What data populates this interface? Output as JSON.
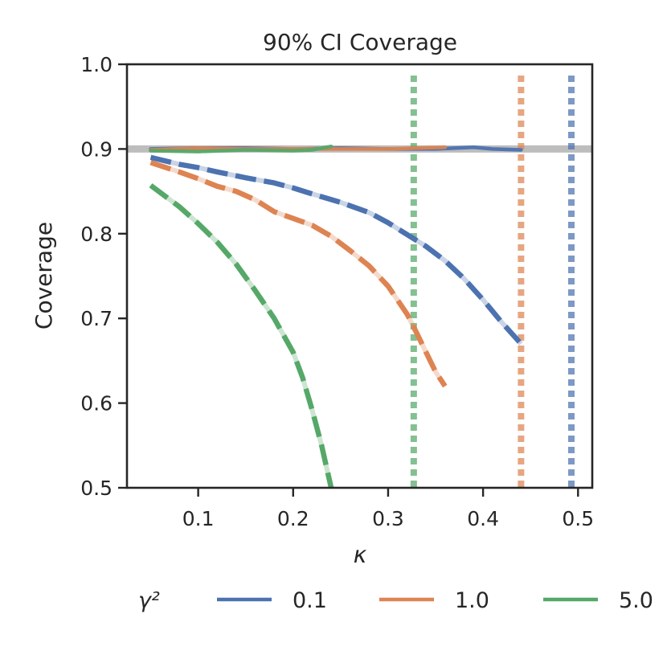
{
  "chart_data": {
    "type": "line",
    "title": "90% CI Coverage",
    "xlabel": "κ",
    "ylabel": "Coverage",
    "xlim": [
      0.025,
      0.515
    ],
    "ylim": [
      0.5,
      1.0
    ],
    "x_ticks": [
      0.1,
      0.2,
      0.3,
      0.4,
      0.5
    ],
    "x_tick_labels": [
      "0.1",
      "0.2",
      "0.3",
      "0.4",
      "0.5"
    ],
    "y_ticks": [
      0.5,
      0.6,
      0.7,
      0.8,
      0.9,
      1.0
    ],
    "y_tick_labels": [
      "0.5",
      "0.6",
      "0.7",
      "0.8",
      "0.9",
      "1.0"
    ],
    "reference_line": {
      "y": 0.9,
      "color": "#bdbdbd"
    },
    "legend": {
      "title": "γ²",
      "placement": "bottom"
    },
    "series": [
      {
        "name": "0.1",
        "color": "#4c72b0",
        "threshold_kappa": 0.493,
        "calibrated": {
          "x": [
            0.05,
            0.1,
            0.15,
            0.2,
            0.25,
            0.3,
            0.35,
            0.39,
            0.41,
            0.44
          ],
          "y": [
            0.9,
            0.901,
            0.901,
            0.9,
            0.901,
            0.9,
            0.9,
            0.902,
            0.9,
            0.899
          ]
        },
        "naive": {
          "x": [
            0.05,
            0.08,
            0.1,
            0.12,
            0.15,
            0.18,
            0.2,
            0.22,
            0.25,
            0.28,
            0.3,
            0.32,
            0.34,
            0.36,
            0.38,
            0.4,
            0.42,
            0.44
          ],
          "y": [
            0.89,
            0.882,
            0.878,
            0.873,
            0.866,
            0.86,
            0.854,
            0.847,
            0.837,
            0.825,
            0.813,
            0.799,
            0.785,
            0.768,
            0.747,
            0.722,
            0.695,
            0.67
          ]
        }
      },
      {
        "name": "1.0",
        "color": "#dd8452",
        "threshold_kappa": 0.44,
        "calibrated": {
          "x": [
            0.05,
            0.1,
            0.15,
            0.2,
            0.25,
            0.3,
            0.33,
            0.36
          ],
          "y": [
            0.899,
            0.901,
            0.9,
            0.9,
            0.9,
            0.9,
            0.901,
            0.902
          ]
        },
        "naive": {
          "x": [
            0.05,
            0.08,
            0.1,
            0.12,
            0.14,
            0.16,
            0.18,
            0.2,
            0.22,
            0.24,
            0.26,
            0.28,
            0.3,
            0.32,
            0.33,
            0.34,
            0.35,
            0.36
          ],
          "y": [
            0.884,
            0.873,
            0.865,
            0.856,
            0.85,
            0.84,
            0.826,
            0.818,
            0.81,
            0.797,
            0.78,
            0.762,
            0.738,
            0.705,
            0.683,
            0.66,
            0.637,
            0.62
          ]
        }
      },
      {
        "name": "5.0",
        "color": "#55a868",
        "threshold_kappa": 0.327,
        "calibrated": {
          "x": [
            0.05,
            0.1,
            0.15,
            0.2,
            0.22,
            0.24
          ],
          "y": [
            0.898,
            0.897,
            0.899,
            0.898,
            0.899,
            0.903
          ]
        },
        "naive": {
          "x": [
            0.05,
            0.08,
            0.1,
            0.12,
            0.14,
            0.16,
            0.18,
            0.2,
            0.21,
            0.22,
            0.23,
            0.24
          ],
          "y": [
            0.857,
            0.832,
            0.812,
            0.79,
            0.764,
            0.733,
            0.7,
            0.66,
            0.63,
            0.592,
            0.55,
            0.5
          ]
        }
      }
    ]
  }
}
